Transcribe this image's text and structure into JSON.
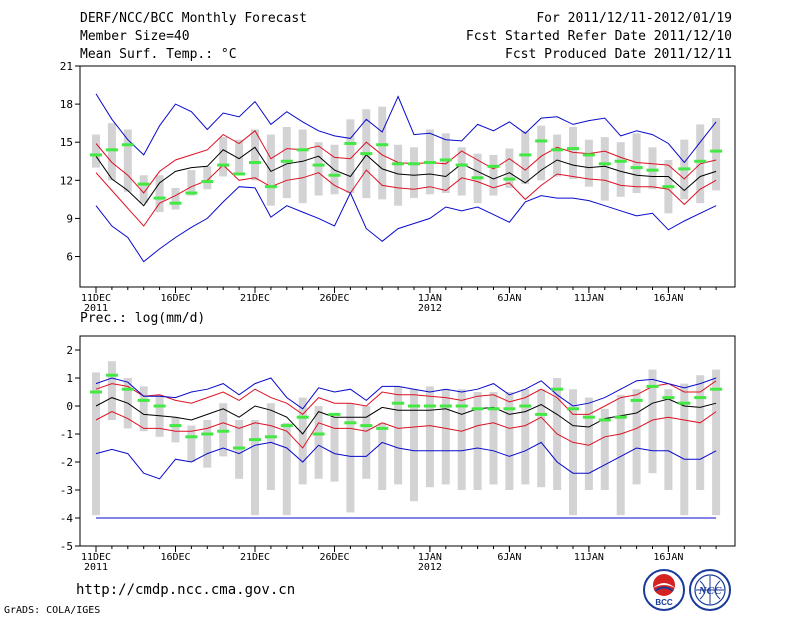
{
  "header": {
    "title": "DERF/NCC/BCC Monthly Forecast",
    "member_size": "Member Size=40",
    "variable": "Mean Surf. Temp.: °C",
    "period": "For 2011/12/11-2012/01/19",
    "fcst_started": "Fcst Started Refer Date 2011/12/10",
    "fcst_produced": "Fcst Produced Date 2011/12/11"
  },
  "footer": {
    "url": "http://cmdp.ncc.cma.gov.cn",
    "credit": "GrADS: COLA/IGES",
    "logo_bcc": "BCC",
    "logo_ncc": "NCC"
  },
  "colors": {
    "mean": "#000000",
    "spread": "#dd1122",
    "extreme": "#0a0acc",
    "box": "#d3d3d6",
    "median": "#44e844",
    "axis": "#000000"
  },
  "chart_data": [
    {
      "type": "line",
      "title": "Mean Surf. Temp.: °C",
      "ylim": [
        3.6,
        21
      ],
      "yticks": [
        21,
        18,
        15,
        12,
        9,
        6
      ],
      "xtick_labels": [
        {
          "day": 0,
          "label": "11DEC",
          "sub": "2011"
        },
        {
          "day": 5,
          "label": "16DEC"
        },
        {
          "day": 10,
          "label": "21DEC"
        },
        {
          "day": 15,
          "label": "26DEC"
        },
        {
          "day": 21,
          "label": "1JAN",
          "sub": "2012"
        },
        {
          "day": 26,
          "label": "6JAN"
        },
        {
          "day": 31,
          "label": "11JAN"
        },
        {
          "day": 36,
          "label": "16JAN"
        }
      ],
      "days": 40,
      "series": [
        {
          "name": "mean",
          "values": [
            13.9,
            12.1,
            11.2,
            10.0,
            11.8,
            12.7,
            13.0,
            13.1,
            14.4,
            13.7,
            14.6,
            12.7,
            13.3,
            13.5,
            13.9,
            12.8,
            12.3,
            14.0,
            12.9,
            12.5,
            12.4,
            12.5,
            12.3,
            13.3,
            12.7,
            12.1,
            12.6,
            11.8,
            12.8,
            13.6,
            13.2,
            13.0,
            13.1,
            12.7,
            12.4,
            12.3,
            12.3,
            11.2,
            12.3,
            12.7
          ]
        },
        {
          "name": "upper",
          "values": [
            14.9,
            13.4,
            12.4,
            11.0,
            12.7,
            13.6,
            14.0,
            14.4,
            15.6,
            14.9,
            15.9,
            13.7,
            14.5,
            14.4,
            14.7,
            13.8,
            13.7,
            15.0,
            14.0,
            13.4,
            13.3,
            13.4,
            13.3,
            14.3,
            13.6,
            12.9,
            13.7,
            12.8,
            13.9,
            14.6,
            14.2,
            14.1,
            14.3,
            13.8,
            13.4,
            13.3,
            13.2,
            12.1,
            13.3,
            13.6
          ]
        },
        {
          "name": "lower",
          "values": [
            12.6,
            11.2,
            9.8,
            8.4,
            10.2,
            10.8,
            11.5,
            12.0,
            13.2,
            12.0,
            12.2,
            11.5,
            12.0,
            12.2,
            12.6,
            11.6,
            11.0,
            12.8,
            11.6,
            11.4,
            11.3,
            11.5,
            11.2,
            12.2,
            11.9,
            11.4,
            11.8,
            10.5,
            11.6,
            12.5,
            12.3,
            12.1,
            12.0,
            11.6,
            11.5,
            11.5,
            11.3,
            10.1,
            11.3,
            12.0
          ]
        },
        {
          "name": "max",
          "values": [
            18.8,
            16.8,
            15.2,
            14.0,
            16.3,
            18.0,
            17.4,
            16.0,
            17.3,
            17.0,
            18.2,
            16.4,
            17.4,
            16.6,
            15.9,
            15.5,
            15.3,
            16.8,
            15.8,
            18.6,
            15.6,
            15.7,
            15.2,
            15.1,
            16.4,
            15.9,
            16.6,
            15.7,
            16.9,
            17.0,
            16.4,
            16.7,
            16.9,
            15.5,
            15.9,
            15.6,
            14.9,
            13.4,
            15.0,
            16.6
          ]
        },
        {
          "name": "min",
          "values": [
            10.0,
            8.4,
            7.5,
            5.6,
            6.6,
            7.5,
            8.3,
            9.0,
            10.3,
            11.5,
            11.4,
            9.1,
            10.0,
            9.5,
            9.0,
            8.4,
            11.0,
            8.2,
            7.2,
            8.2,
            8.6,
            9.0,
            9.9,
            9.6,
            9.9,
            9.3,
            8.7,
            10.3,
            10.8,
            10.6,
            10.6,
            10.4,
            10.0,
            9.6,
            9.2,
            9.4,
            8.1,
            8.8,
            9.4,
            10.0
          ]
        }
      ],
      "boxes": [
        {
          "low": 13.0,
          "high": 15.6,
          "median": 14.0
        },
        {
          "low": 12.0,
          "high": 16.5,
          "median": 14.4
        },
        {
          "low": 11.1,
          "high": 16.0,
          "median": 14.8
        },
        {
          "low": 10.2,
          "high": 12.4,
          "median": 11.7
        },
        {
          "low": 9.5,
          "high": 12.4,
          "median": 10.6
        },
        {
          "low": 9.7,
          "high": 11.4,
          "median": 10.2
        },
        {
          "low": 10.8,
          "high": 12.8,
          "median": 11.0
        },
        {
          "low": 11.3,
          "high": 13.1,
          "median": 11.9
        },
        {
          "low": 12.3,
          "high": 15.4,
          "median": 13.2
        },
        {
          "low": 12.4,
          "high": 15.2,
          "median": 12.5
        },
        {
          "low": 12.0,
          "high": 16.0,
          "median": 13.4
        },
        {
          "low": 10.0,
          "high": 15.6,
          "median": 11.5
        },
        {
          "low": 10.6,
          "high": 16.2,
          "median": 13.5
        },
        {
          "low": 10.2,
          "high": 16.0,
          "median": 14.4
        },
        {
          "low": 10.8,
          "high": 15.0,
          "median": 13.2
        },
        {
          "low": 10.9,
          "high": 14.8,
          "median": 12.4
        },
        {
          "low": 11.0,
          "high": 16.8,
          "median": 14.9
        },
        {
          "low": 10.6,
          "high": 17.6,
          "median": 14.1
        },
        {
          "low": 10.5,
          "high": 17.8,
          "median": 14.8
        },
        {
          "low": 10.0,
          "high": 14.8,
          "median": 13.3
        },
        {
          "low": 10.6,
          "high": 14.6,
          "median": 13.3
        },
        {
          "low": 10.9,
          "high": 16.0,
          "median": 13.4
        },
        {
          "low": 11.0,
          "high": 15.7,
          "median": 13.6
        },
        {
          "low": 10.8,
          "high": 14.6,
          "median": 13.2
        },
        {
          "low": 10.2,
          "high": 14.1,
          "median": 12.2
        },
        {
          "low": 10.8,
          "high": 14.0,
          "median": 13.1
        },
        {
          "low": 11.4,
          "high": 14.5,
          "median": 12.1
        },
        {
          "low": 11.7,
          "high": 15.9,
          "median": 14.0
        },
        {
          "low": 12.0,
          "high": 16.3,
          "median": 15.1
        },
        {
          "low": 12.3,
          "high": 15.6,
          "median": 14.4
        },
        {
          "low": 12.1,
          "high": 16.2,
          "median": 14.5
        },
        {
          "low": 11.5,
          "high": 15.2,
          "median": 14.0
        },
        {
          "low": 10.4,
          "high": 15.4,
          "median": 13.3
        },
        {
          "low": 10.7,
          "high": 15.0,
          "median": 13.5
        },
        {
          "low": 11.0,
          "high": 15.7,
          "median": 13.0
        },
        {
          "low": 11.3,
          "high": 14.6,
          "median": 12.8
        },
        {
          "low": 9.4,
          "high": 13.6,
          "median": 11.5
        },
        {
          "low": 10.5,
          "high": 15.2,
          "median": 12.9
        },
        {
          "low": 10.2,
          "high": 16.4,
          "median": 13.5
        },
        {
          "low": 11.2,
          "high": 16.9,
          "median": 14.3
        }
      ]
    },
    {
      "type": "line",
      "title": "Prec.: log(mm/d)",
      "ylim": [
        -5,
        2.5
      ],
      "yticks": [
        2,
        1,
        0,
        -1,
        -2,
        -3,
        -4,
        -5
      ],
      "xtick_labels": [
        {
          "day": 0,
          "label": "11DEC",
          "sub": "2011"
        },
        {
          "day": 5,
          "label": "16DEC"
        },
        {
          "day": 10,
          "label": "21DEC"
        },
        {
          "day": 15,
          "label": "26DEC"
        },
        {
          "day": 21,
          "label": "1JAN",
          "sub": "2012"
        },
        {
          "day": 26,
          "label": "6JAN"
        },
        {
          "day": 31,
          "label": "11JAN"
        },
        {
          "day": 36,
          "label": "16JAN"
        }
      ],
      "days": 40,
      "floor_line": -4,
      "series": [
        {
          "name": "mean",
          "values": [
            0.0,
            0.3,
            0.1,
            -0.3,
            -0.35,
            -0.4,
            -0.5,
            -0.3,
            -0.1,
            -0.4,
            0.0,
            -0.15,
            -0.4,
            -1.0,
            -0.2,
            -0.4,
            -0.4,
            -0.4,
            -0.05,
            -0.15,
            -0.15,
            -0.15,
            -0.1,
            -0.3,
            -0.1,
            -0.05,
            -0.3,
            -0.2,
            0.05,
            -0.3,
            -0.7,
            -0.75,
            -0.45,
            -0.35,
            -0.25,
            0.1,
            0.25,
            0.0,
            -0.05,
            0.1
          ]
        },
        {
          "name": "upper",
          "values": [
            0.6,
            0.8,
            0.7,
            0.35,
            0.4,
            0.2,
            0.1,
            0.3,
            0.5,
            0.2,
            0.6,
            0.3,
            0.1,
            -0.3,
            0.3,
            0.1,
            0.1,
            0.0,
            0.5,
            0.4,
            0.4,
            0.35,
            0.3,
            0.2,
            0.35,
            0.4,
            0.15,
            0.3,
            0.6,
            0.3,
            -0.3,
            -0.3,
            0.0,
            0.3,
            0.4,
            0.7,
            0.8,
            0.5,
            0.5,
            0.9
          ]
        },
        {
          "name": "lower",
          "values": [
            -0.5,
            -0.2,
            -0.45,
            -0.8,
            -0.8,
            -0.9,
            -0.9,
            -0.8,
            -0.6,
            -0.8,
            -0.6,
            -0.7,
            -0.9,
            -1.5,
            -0.6,
            -0.8,
            -0.8,
            -0.9,
            -0.6,
            -0.8,
            -0.75,
            -0.7,
            -0.8,
            -0.9,
            -0.7,
            -0.6,
            -0.8,
            -0.7,
            -0.4,
            -1.0,
            -1.3,
            -1.4,
            -1.1,
            -1.0,
            -0.8,
            -0.5,
            -0.4,
            -0.5,
            -0.6,
            -0.2
          ]
        },
        {
          "name": "max",
          "values": [
            0.8,
            1.0,
            0.85,
            0.35,
            0.35,
            0.3,
            0.5,
            0.6,
            0.8,
            0.4,
            0.8,
            1.0,
            0.3,
            -0.1,
            0.65,
            0.5,
            0.6,
            0.2,
            0.7,
            0.7,
            0.6,
            0.5,
            0.6,
            0.5,
            0.6,
            0.8,
            0.4,
            0.6,
            0.9,
            0.4,
            0.0,
            0.1,
            0.3,
            0.6,
            0.9,
            0.95,
            0.8,
            0.65,
            0.8,
            1.0
          ]
        },
        {
          "name": "min",
          "values": [
            -1.7,
            -1.55,
            -1.7,
            -2.4,
            -2.6,
            -1.9,
            -2.0,
            -1.7,
            -1.5,
            -1.7,
            -1.4,
            -1.3,
            -1.5,
            -2.0,
            -1.4,
            -1.7,
            -1.8,
            -1.8,
            -1.3,
            -1.5,
            -1.6,
            -1.6,
            -1.6,
            -1.6,
            -1.5,
            -1.6,
            -1.8,
            -1.6,
            -1.3,
            -2.0,
            -2.4,
            -2.4,
            -2.1,
            -1.8,
            -1.5,
            -1.6,
            -1.6,
            -1.9,
            -1.9,
            -1.6
          ]
        }
      ],
      "boxes": [
        {
          "low": -3.9,
          "high": 1.2,
          "median": 0.5
        },
        {
          "low": -0.5,
          "high": 1.6,
          "median": 1.1
        },
        {
          "low": -0.8,
          "high": 1.0,
          "median": 0.6
        },
        {
          "low": -0.9,
          "high": 0.7,
          "median": 0.2
        },
        {
          "low": -1.1,
          "high": 0.4,
          "median": 0.0
        },
        {
          "low": -1.3,
          "high": -0.4,
          "median": -0.7
        },
        {
          "low": -2.0,
          "high": -0.7,
          "median": -1.1
        },
        {
          "low": -2.2,
          "high": -0.5,
          "median": -1.0
        },
        {
          "low": -1.8,
          "high": 0.1,
          "median": -0.9
        },
        {
          "low": -2.6,
          "high": -0.5,
          "median": -1.5
        },
        {
          "low": -3.9,
          "high": -0.5,
          "median": -1.2
        },
        {
          "low": -3.0,
          "high": 0.1,
          "median": -1.1
        },
        {
          "low": -3.9,
          "high": -0.6,
          "median": -0.7
        },
        {
          "low": -2.8,
          "high": 0.3,
          "median": -0.4
        },
        {
          "low": -2.6,
          "high": 0.0,
          "median": -1.0
        },
        {
          "low": -2.7,
          "high": -0.4,
          "median": -0.3
        },
        {
          "low": -3.8,
          "high": 0.1,
          "median": -0.6
        },
        {
          "low": -2.6,
          "high": 0.0,
          "median": -0.7
        },
        {
          "low": -3.0,
          "high": -0.6,
          "median": -0.8
        },
        {
          "low": -2.8,
          "high": 0.7,
          "median": 0.1
        },
        {
          "low": -3.4,
          "high": 0.6,
          "median": 0.0
        },
        {
          "low": -2.9,
          "high": 0.7,
          "median": 0.0
        },
        {
          "low": -2.8,
          "high": 0.6,
          "median": 0.0
        },
        {
          "low": -3.0,
          "high": 0.6,
          "median": 0.0
        },
        {
          "low": -3.0,
          "high": 0.5,
          "median": -0.1
        },
        {
          "low": -2.8,
          "high": 0.5,
          "median": -0.1
        },
        {
          "low": -3.0,
          "high": 0.5,
          "median": -0.1
        },
        {
          "low": -2.8,
          "high": 0.6,
          "median": 0.0
        },
        {
          "low": -2.9,
          "high": 0.6,
          "median": -0.3
        },
        {
          "low": -3.0,
          "high": 1.0,
          "median": 0.6
        },
        {
          "low": -3.9,
          "high": 0.6,
          "median": -0.1
        },
        {
          "low": -3.0,
          "high": 0.3,
          "median": -0.4
        },
        {
          "low": -3.0,
          "high": -0.1,
          "median": -0.5
        },
        {
          "low": -3.9,
          "high": 0.4,
          "median": -0.4
        },
        {
          "low": -2.8,
          "high": 0.6,
          "median": 0.2
        },
        {
          "low": -2.4,
          "high": 1.3,
          "median": 0.7
        },
        {
          "low": -3.0,
          "high": 0.6,
          "median": 0.3
        },
        {
          "low": -3.9,
          "high": 0.8,
          "median": 0.1
        },
        {
          "low": -3.0,
          "high": 1.1,
          "median": 0.3
        },
        {
          "low": -3.9,
          "high": 1.3,
          "median": 0.6
        }
      ]
    }
  ]
}
